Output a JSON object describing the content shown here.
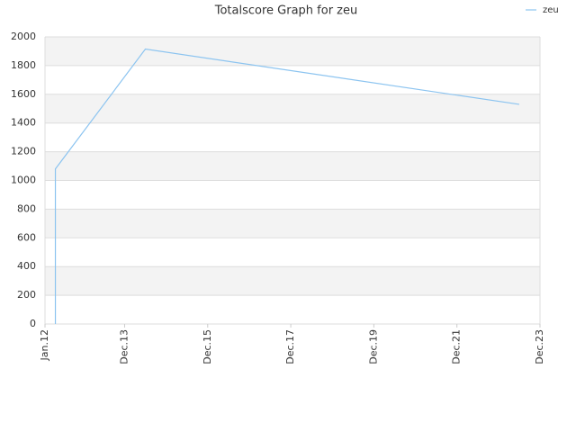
{
  "chart_data": {
    "type": "line",
    "title": "Totalscore Graph for zeu",
    "x": [
      "2012-04",
      "2012-04",
      "2014-06",
      "2023-06"
    ],
    "series": [
      {
        "name": "zeu",
        "color": "#8cc4f0",
        "values": [
          0,
          1080,
          1915,
          1530
        ]
      }
    ],
    "xlim": [
      "2012-01",
      "2023-12"
    ],
    "xticks": [
      {
        "value": "2012-01",
        "label": "Jan.12"
      },
      {
        "value": "2013-12",
        "label": "Dec.13"
      },
      {
        "value": "2015-12",
        "label": "Dec.15"
      },
      {
        "value": "2017-12",
        "label": "Dec.17"
      },
      {
        "value": "2019-12",
        "label": "Dec.19"
      },
      {
        "value": "2021-12",
        "label": "Dec.21"
      },
      {
        "value": "2023-12",
        "label": "Dec.23"
      }
    ],
    "ylim": [
      0,
      2000
    ],
    "yticks": [
      0,
      200,
      400,
      600,
      800,
      1000,
      1200,
      1400,
      1600,
      1800,
      2000
    ],
    "grid": true,
    "legend": "top-right"
  }
}
